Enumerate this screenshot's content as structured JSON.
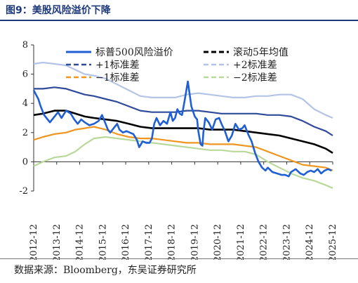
{
  "figure": {
    "title": "图9：美股风险溢价下降",
    "source": "数据来源：Bloomberg，东吴证券研究所"
  },
  "chart_data": {
    "type": "line",
    "ylim": [
      -2,
      8
    ],
    "yticks": [
      "8",
      "6",
      "4",
      "2",
      "0",
      "-2"
    ],
    "xticks": [
      "2012-12",
      "2013-12",
      "2014-12",
      "2015-12",
      "2016-12",
      "2017-12",
      "2018-12",
      "2019-12",
      "2020-12",
      "2021-12",
      "2022-12",
      "2023-12",
      "2024-12",
      "2025-12"
    ],
    "legend_placement": "top",
    "series": [
      {
        "name": "标普500风险溢价",
        "color": "#1f5fd6",
        "x": [
          2012.9,
          2013.1,
          2013.2,
          2013.35,
          2013.5,
          2013.6,
          2013.8,
          2013.95,
          2014.1,
          2014.3,
          2014.5,
          2014.65,
          2014.8,
          2014.95,
          2015.1,
          2015.3,
          2015.5,
          2015.7,
          2015.85,
          2016.0,
          2016.1,
          2016.2,
          2016.35,
          2016.5,
          2016.6,
          2016.75,
          2016.9,
          2017.05,
          2017.2,
          2017.35,
          2017.45,
          2017.6,
          2017.75,
          2017.9,
          2018.0,
          2018.1,
          2018.2,
          2018.35,
          2018.5,
          2018.65,
          2018.8,
          2018.9,
          2019.0,
          2019.1,
          2019.2,
          2019.3,
          2019.4,
          2019.55,
          2019.7,
          2019.85,
          2019.95,
          2020.0,
          2020.1,
          2020.18,
          2020.22,
          2020.3,
          2020.45,
          2020.6,
          2020.75,
          2020.9,
          2021.0,
          2021.15,
          2021.3,
          2021.45,
          2021.6,
          2021.75,
          2021.9,
          2022.0,
          2022.15,
          2022.3,
          2022.45,
          2022.6,
          2022.75,
          2022.9,
          2023.0,
          2023.2,
          2023.4,
          2023.6,
          2023.75,
          2023.9,
          2024.0,
          2024.2,
          2024.4,
          2024.55,
          2024.7,
          2024.85,
          2025.0,
          2025.15,
          2025.3,
          2025.45,
          2025.6,
          2025.75
        ],
        "values": [
          4.9,
          4.3,
          3.8,
          3.2,
          2.9,
          2.7,
          3.1,
          3.4,
          3.0,
          3.5,
          3.3,
          2.9,
          2.6,
          2.9,
          2.7,
          2.5,
          2.6,
          2.8,
          3.2,
          2.6,
          2.2,
          2.0,
          2.3,
          2.6,
          2.2,
          2.0,
          2.1,
          2.0,
          1.9,
          1.5,
          1.0,
          1.4,
          1.3,
          1.3,
          1.6,
          2.6,
          3.0,
          2.5,
          2.8,
          2.6,
          3.4,
          2.8,
          3.0,
          3.6,
          3.3,
          3.2,
          4.1,
          5.5,
          3.8,
          3.1,
          2.9,
          2.1,
          1.2,
          1.1,
          2.0,
          3.0,
          2.7,
          2.2,
          2.9,
          3.0,
          2.6,
          2.1,
          1.4,
          1.8,
          2.6,
          2.2,
          2.3,
          2.5,
          1.9,
          1.4,
          0.6,
          0.0,
          -0.4,
          -0.6,
          -0.4,
          -0.7,
          -0.8,
          -0.9,
          -0.9,
          -1.0,
          -0.7,
          -0.5,
          -0.8,
          -0.9,
          -0.7,
          -0.6,
          -0.7,
          -0.5,
          -0.8,
          -0.6,
          -0.5,
          -0.6
        ]
      },
      {
        "name": "滚动5年均值",
        "color": "#000000",
        "x": [
          2012.9,
          2013.3,
          2013.8,
          2014.3,
          2014.7,
          2015.1,
          2015.5,
          2016.0,
          2016.5,
          2017.0,
          2017.5,
          2018.0,
          2018.5,
          2019.0,
          2019.5,
          2020.0,
          2020.5,
          2021.0,
          2021.5,
          2022.0,
          2022.5,
          2023.0,
          2023.5,
          2024.0,
          2024.5,
          2025.0,
          2025.5,
          2025.8
        ],
        "values": [
          3.2,
          3.3,
          3.5,
          3.5,
          3.3,
          3.1,
          3.0,
          2.9,
          2.8,
          2.6,
          2.4,
          2.3,
          2.3,
          2.3,
          2.3,
          2.3,
          2.2,
          2.2,
          2.2,
          2.1,
          2.0,
          1.9,
          1.8,
          1.6,
          1.4,
          1.2,
          0.9,
          0.6
        ]
      },
      {
        "name": "+1标准差",
        "color": "#2f4a9a",
        "x": [
          2012.9,
          2013.3,
          2013.8,
          2014.3,
          2014.7,
          2015.1,
          2015.5,
          2016.0,
          2016.5,
          2017.0,
          2017.5,
          2018.0,
          2018.5,
          2019.0,
          2019.5,
          2020.0,
          2020.5,
          2021.0,
          2021.5,
          2022.0,
          2022.5,
          2023.0,
          2023.5,
          2024.0,
          2024.5,
          2025.0,
          2025.5,
          2025.8
        ],
        "values": [
          5.0,
          5.0,
          5.1,
          5.0,
          4.8,
          4.6,
          4.5,
          4.3,
          4.1,
          3.8,
          3.5,
          3.4,
          3.4,
          3.4,
          3.5,
          3.5,
          3.4,
          3.3,
          3.3,
          3.3,
          3.3,
          3.2,
          3.2,
          3.1,
          2.8,
          2.4,
          2.1,
          1.8
        ]
      },
      {
        "name": "−1标准差",
        "color": "#f0961e",
        "x": [
          2012.9,
          2013.3,
          2013.8,
          2014.3,
          2014.7,
          2015.1,
          2015.5,
          2016.0,
          2016.5,
          2017.0,
          2017.5,
          2018.0,
          2018.5,
          2019.0,
          2019.5,
          2020.0,
          2020.5,
          2021.0,
          2021.5,
          2022.0,
          2022.5,
          2023.0,
          2023.5,
          2024.0,
          2024.5,
          2025.0,
          2025.5,
          2025.8
        ],
        "values": [
          1.5,
          1.7,
          1.9,
          2.0,
          2.2,
          2.3,
          2.4,
          2.2,
          1.9,
          1.7,
          1.6,
          1.6,
          1.5,
          1.4,
          1.3,
          1.3,
          1.2,
          1.2,
          1.2,
          1.1,
          1.0,
          0.7,
          0.4,
          0.1,
          -0.2,
          -0.3,
          -0.4,
          -0.6
        ]
      },
      {
        "name": "+2标准差",
        "color": "#b4c4e6",
        "x": [
          2012.9,
          2013.3,
          2013.8,
          2014.3,
          2014.7,
          2015.1,
          2015.5,
          2016.0,
          2016.5,
          2017.0,
          2017.5,
          2018.0,
          2018.5,
          2019.0,
          2019.5,
          2020.0,
          2020.5,
          2021.0,
          2021.5,
          2022.0,
          2022.5,
          2023.0,
          2023.5,
          2024.0,
          2024.5,
          2025.0,
          2025.5,
          2025.8
        ],
        "values": [
          6.7,
          6.8,
          6.7,
          6.6,
          6.3,
          6.0,
          5.9,
          5.7,
          5.3,
          4.9,
          4.5,
          4.4,
          4.4,
          4.4,
          4.6,
          4.7,
          4.6,
          4.5,
          4.4,
          4.4,
          4.5,
          4.5,
          4.6,
          4.6,
          4.3,
          3.6,
          3.2,
          3.0
        ]
      },
      {
        "name": "−2标准差",
        "color": "#b9d99a",
        "x": [
          2012.9,
          2013.3,
          2013.8,
          2014.3,
          2014.7,
          2015.1,
          2015.5,
          2016.0,
          2016.5,
          2017.0,
          2017.5,
          2018.0,
          2018.5,
          2019.0,
          2019.5,
          2020.0,
          2020.5,
          2021.0,
          2021.5,
          2022.0,
          2022.5,
          2023.0,
          2023.5,
          2024.0,
          2024.5,
          2025.0,
          2025.5,
          2025.8
        ],
        "values": [
          -0.3,
          0.0,
          0.3,
          0.4,
          0.7,
          1.2,
          1.6,
          1.7,
          1.6,
          1.5,
          1.4,
          1.3,
          1.2,
          1.1,
          1.0,
          0.9,
          0.8,
          0.8,
          0.7,
          0.7,
          0.5,
          0.0,
          -0.4,
          -0.8,
          -1.1,
          -1.3,
          -1.6,
          -1.8
        ]
      }
    ]
  }
}
